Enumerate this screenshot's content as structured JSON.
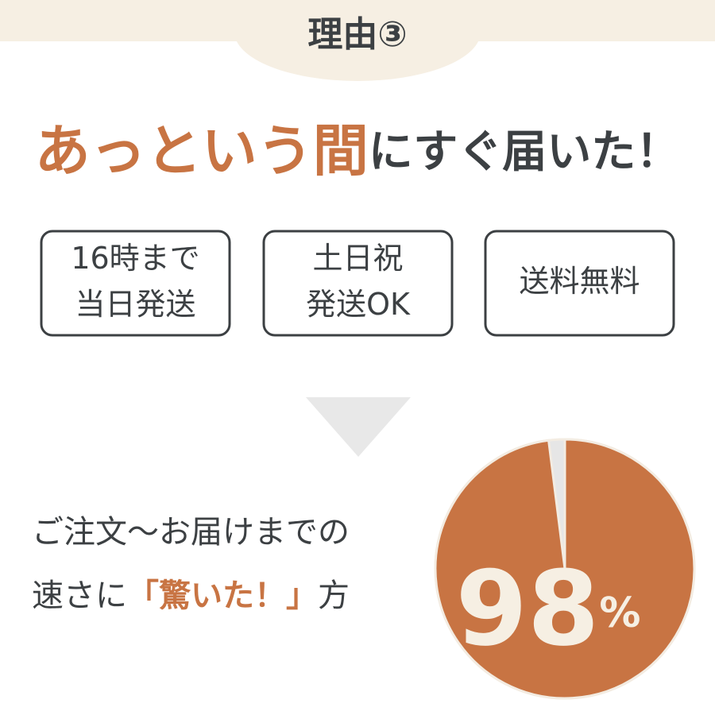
{
  "header": {
    "title": "理由③"
  },
  "headline": {
    "highlight": "あっという間",
    "rest": "にすぐ届いた！"
  },
  "badges": [
    {
      "lines": [
        "16時まで",
        "当日発送"
      ]
    },
    {
      "lines": [
        "土日祝",
        "発送OK"
      ]
    },
    {
      "lines": [
        "送料無料"
      ]
    }
  ],
  "caption": {
    "line1": "ご注文〜お届けまでの",
    "line2_before": "速さに",
    "line2_highlight": "「驚いた！」",
    "line2_after": "方"
  },
  "pie": {
    "value": 98,
    "value_number": "98",
    "value_unit": "%"
  }
}
